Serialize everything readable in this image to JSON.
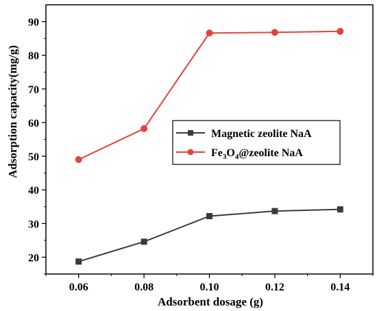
{
  "chart_data": {
    "type": "line",
    "title": "",
    "xlabel": "Adsorbent dosage (g)",
    "ylabel": "Adsorption capacity(mg/g)",
    "x": [
      0.06,
      0.08,
      0.1,
      0.12,
      0.14
    ],
    "x_tick_labels": [
      "0.06",
      "0.08",
      "0.10",
      "0.12",
      "0.14"
    ],
    "xlim": [
      0.05,
      0.15
    ],
    "ylim": [
      15,
      95
    ],
    "y_ticks": [
      20,
      30,
      40,
      50,
      60,
      70,
      80,
      90
    ],
    "grid": false,
    "legend_position": "center-right",
    "series": [
      {
        "name": "Magnetic zeolite NaA",
        "name_parts": {
          "main": "Magnetic zeolite NaA"
        },
        "marker": "square",
        "color": "#3a3a3a",
        "values": [
          18.7,
          24.6,
          32.2,
          33.7,
          34.2
        ]
      },
      {
        "name": "Fe3O4@zeolite NaA",
        "name_parts": {
          "a": "Fe",
          "sub1": "3",
          "b": "O",
          "sub2": "4",
          "c": "@zeolite NaA"
        },
        "marker": "circle",
        "color": "#e8413a",
        "values": [
          49.0,
          58.2,
          86.6,
          86.8,
          87.1
        ]
      }
    ]
  }
}
